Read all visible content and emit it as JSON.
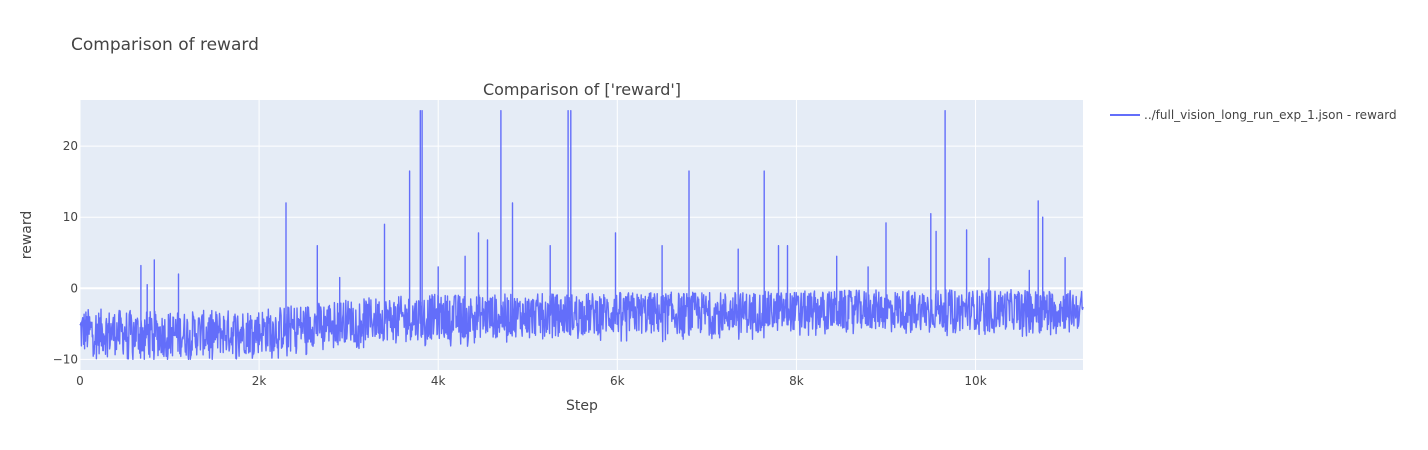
{
  "page_title": "Comparison of reward",
  "chart_data": {
    "type": "line",
    "title": "Comparison of ['reward']",
    "xlabel": "Step",
    "ylabel": "reward",
    "xlim": [
      0,
      11200
    ],
    "ylim": [
      -11.5,
      26.5
    ],
    "x_ticks": [
      {
        "value": 0,
        "label": "0"
      },
      {
        "value": 2000,
        "label": "2k"
      },
      {
        "value": 4000,
        "label": "4k"
      },
      {
        "value": 6000,
        "label": "6k"
      },
      {
        "value": 8000,
        "label": "8k"
      },
      {
        "value": 10000,
        "label": "10k"
      }
    ],
    "y_ticks": [
      {
        "value": -10,
        "label": "−10"
      },
      {
        "value": 0,
        "label": "0"
      },
      {
        "value": 10,
        "label": "10"
      },
      {
        "value": 20,
        "label": "20"
      }
    ],
    "grid": true,
    "legend_position": "top-right",
    "series": [
      {
        "name": "../full_vision_long_run_exp_1.json - reward",
        "color": "#636efa",
        "baseline": [
          {
            "x": 0,
            "center": -6.0,
            "spread": 3.2
          },
          {
            "x": 1000,
            "center": -6.5,
            "spread": 3.2
          },
          {
            "x": 2000,
            "center": -6.0,
            "spread": 3.2
          },
          {
            "x": 3000,
            "center": -4.5,
            "spread": 3.0
          },
          {
            "x": 4000,
            "center": -4.0,
            "spread": 3.2
          },
          {
            "x": 5000,
            "center": -3.8,
            "spread": 3.0
          },
          {
            "x": 6000,
            "center": -3.5,
            "spread": 3.0
          },
          {
            "x": 7000,
            "center": -3.5,
            "spread": 3.0
          },
          {
            "x": 8000,
            "center": -3.2,
            "spread": 2.8
          },
          {
            "x": 9000,
            "center": -3.0,
            "spread": 2.8
          },
          {
            "x": 10000,
            "center": -3.0,
            "spread": 2.8
          },
          {
            "x": 11200,
            "center": -3.0,
            "spread": 2.8
          }
        ],
        "spikes": [
          {
            "x": 680,
            "y": 3.2
          },
          {
            "x": 750,
            "y": 0.5
          },
          {
            "x": 830,
            "y": 4.0
          },
          {
            "x": 1100,
            "y": 2.0
          },
          {
            "x": 2300,
            "y": 12.0
          },
          {
            "x": 2650,
            "y": 6.0
          },
          {
            "x": 2900,
            "y": 1.5
          },
          {
            "x": 3400,
            "y": 9.0
          },
          {
            "x": 3680,
            "y": 16.5
          },
          {
            "x": 3800,
            "y": 25.0
          },
          {
            "x": 3820,
            "y": 25.0
          },
          {
            "x": 4000,
            "y": 3.0
          },
          {
            "x": 4300,
            "y": 4.5
          },
          {
            "x": 4450,
            "y": 7.8
          },
          {
            "x": 4550,
            "y": 6.8
          },
          {
            "x": 4700,
            "y": 25.0
          },
          {
            "x": 4830,
            "y": 12.0
          },
          {
            "x": 5250,
            "y": 6.0
          },
          {
            "x": 5450,
            "y": 25.0
          },
          {
            "x": 5480,
            "y": 25.0
          },
          {
            "x": 5980,
            "y": 7.8
          },
          {
            "x": 6500,
            "y": 6.0
          },
          {
            "x": 6800,
            "y": 16.5
          },
          {
            "x": 7350,
            "y": 5.5
          },
          {
            "x": 7640,
            "y": 16.5
          },
          {
            "x": 7800,
            "y": 6.0
          },
          {
            "x": 7900,
            "y": 6.0
          },
          {
            "x": 8450,
            "y": 4.5
          },
          {
            "x": 8800,
            "y": 3.0
          },
          {
            "x": 9000,
            "y": 9.2
          },
          {
            "x": 9500,
            "y": 10.5
          },
          {
            "x": 9560,
            "y": 8.0
          },
          {
            "x": 9660,
            "y": 25.0
          },
          {
            "x": 9900,
            "y": 8.2
          },
          {
            "x": 10150,
            "y": 4.2
          },
          {
            "x": 10600,
            "y": 2.5
          },
          {
            "x": 10700,
            "y": 12.3
          },
          {
            "x": 10750,
            "y": 10.0
          },
          {
            "x": 11000,
            "y": 4.3
          }
        ]
      }
    ]
  }
}
